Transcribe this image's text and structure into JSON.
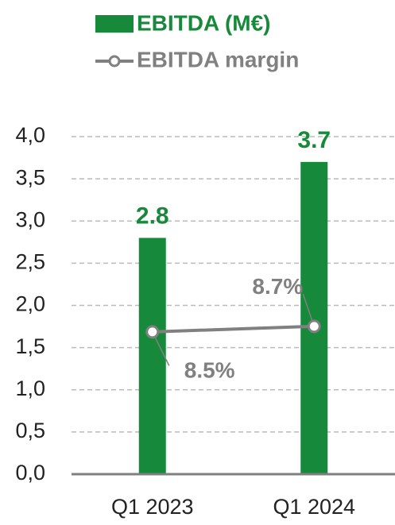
{
  "chart_data": {
    "type": "bar",
    "categories": [
      "Q1 2023",
      "Q1 2024"
    ],
    "series": [
      {
        "name": "EBITDA (M€)",
        "color": "#168a3a",
        "values": [
          2.8,
          3.7
        ]
      },
      {
        "name": "EBITDA margin",
        "color": "#808080",
        "values": [
          8.5,
          8.7
        ],
        "value_labels": [
          "8.5%",
          "8.7%"
        ],
        "axis": "y2",
        "type": "line"
      }
    ],
    "ylim": [
      0,
      4
    ],
    "yticks": [
      {
        "value": 0,
        "label": "0,0"
      },
      {
        "value": 0.5,
        "label": "0,5"
      },
      {
        "value": 1,
        "label": "1,0"
      },
      {
        "value": 1.5,
        "label": "1,5"
      },
      {
        "value": 2,
        "label": "2,0"
      },
      {
        "value": 2.5,
        "label": "2,5"
      },
      {
        "value": 3,
        "label": "3,0"
      },
      {
        "value": 3.5,
        "label": "3,5"
      },
      {
        "value": 4,
        "label": "4,0"
      }
    ],
    "y2lim": [
      3.4,
      15.5
    ],
    "grid": true,
    "legend": "top"
  }
}
